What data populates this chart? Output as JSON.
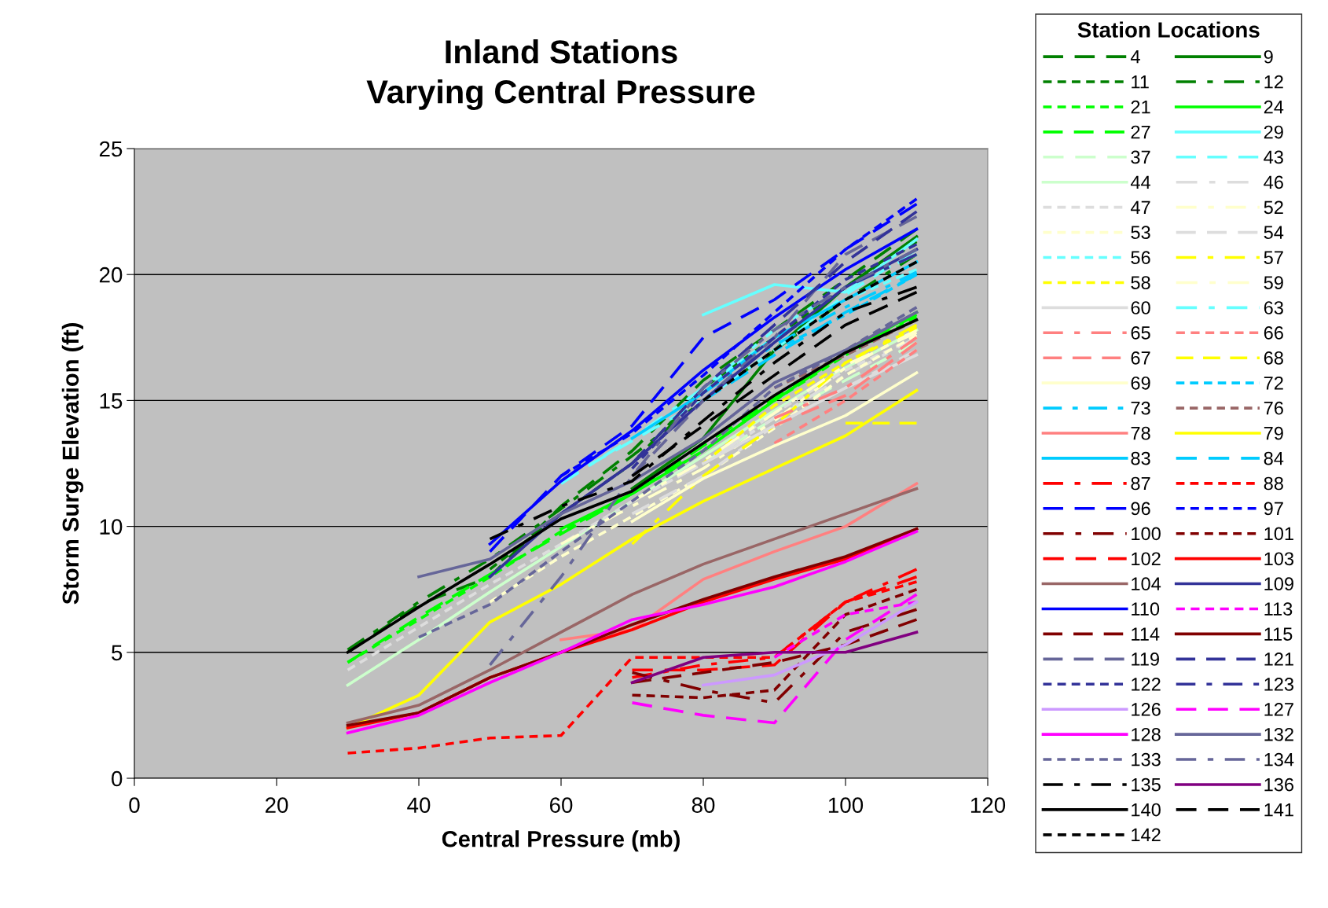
{
  "chart_data": {
    "type": "line",
    "title": "Inland Stations\nVarying Central Pressure",
    "xlabel": "Central Pressure (mb)",
    "ylabel": "Storm Surge Elevation (ft)",
    "legend_title": "Station Locations",
    "xlim": [
      0,
      120
    ],
    "xticks": [
      0,
      20,
      40,
      60,
      80,
      100,
      120
    ],
    "ylim": [
      0,
      25
    ],
    "yticks": [
      0,
      5,
      10,
      15,
      20,
      25
    ],
    "grid": "y",
    "legend": "right",
    "series": [
      {
        "name": "4",
        "color": "#008000",
        "line_style": "dashed",
        "x": [
          30,
          40,
          50,
          60,
          70,
          80,
          90,
          100,
          110
        ],
        "values": [
          5.0,
          6.9,
          8.0,
          10.8,
          13.0,
          15.8,
          17.8,
          19.8,
          21.8
        ]
      },
      {
        "name": "9",
        "color": "#008000",
        "line_style": "solid",
        "x": [
          70,
          80,
          90,
          100,
          110
        ],
        "values": [
          11.5,
          13.5,
          17.0,
          19.5,
          21.5
        ]
      },
      {
        "name": "11",
        "color": "#008000",
        "line_style": "dotted",
        "x": [
          50,
          60,
          70,
          80,
          90,
          100,
          110
        ],
        "values": [
          8.3,
          10.5,
          12.5,
          15.5,
          17.5,
          19.5,
          21.3
        ]
      },
      {
        "name": "12",
        "color": "#008000",
        "line_style": "dashdot",
        "x": [
          30,
          40,
          50,
          60,
          70,
          80,
          90,
          100,
          110
        ],
        "values": [
          5.1,
          7.0,
          8.7,
          10.7,
          12.8,
          15.0,
          17.0,
          19.0,
          20.8
        ]
      },
      {
        "name": "21",
        "color": "#00ff00",
        "line_style": "dotted",
        "x": [
          30,
          40,
          50,
          60,
          70,
          80,
          90,
          100,
          110
        ],
        "values": [
          4.6,
          6.3,
          8.0,
          9.8,
          11.3,
          13.0,
          15.0,
          16.8,
          18.3
        ]
      },
      {
        "name": "24",
        "color": "#00ff00",
        "line_style": "solid",
        "x": [
          60,
          70,
          80,
          90,
          100,
          110
        ],
        "values": [
          9.9,
          11.3,
          13.0,
          15.0,
          16.9,
          18.5
        ]
      },
      {
        "name": "27",
        "color": "#00ff00",
        "line_style": "dashed",
        "x": [
          30,
          40,
          50,
          60,
          70,
          80,
          90,
          100,
          110
        ],
        "values": [
          4.6,
          6.4,
          8.1,
          9.7,
          11.3,
          13.2,
          15.1,
          16.9,
          18.4
        ]
      },
      {
        "name": "29",
        "color": "#66ffff",
        "line_style": "solid",
        "x": [
          80,
          90,
          100,
          110
        ],
        "values": [
          18.4,
          19.6,
          19.3,
          21.4
        ]
      },
      {
        "name": "37",
        "color": "#ccffcc",
        "line_style": "dashed",
        "x": [
          80,
          90,
          100,
          110
        ],
        "values": [
          12.5,
          14.3,
          15.8,
          17.3
        ]
      },
      {
        "name": "43",
        "color": "#66ffff",
        "line_style": "dashed",
        "x": [
          60,
          70,
          80,
          90,
          100,
          110
        ],
        "values": [
          11.8,
          13.4,
          15.0,
          17.0,
          19.2,
          21.0
        ]
      },
      {
        "name": "44",
        "color": "#ccffcc",
        "line_style": "solid",
        "x": [
          30,
          40,
          50,
          60,
          70,
          80,
          90,
          100,
          110
        ],
        "values": [
          3.7,
          5.5,
          7.4,
          9.2,
          11.0,
          12.8,
          14.6,
          16.3,
          17.8
        ]
      },
      {
        "name": "46",
        "color": "#dddddd",
        "line_style": "dashdot",
        "x": [
          70,
          80,
          90,
          100,
          110
        ],
        "values": [
          11.0,
          12.5,
          14.3,
          16.0,
          17.5
        ]
      },
      {
        "name": "47",
        "color": "#dddddd",
        "line_style": "dotted",
        "x": [
          30,
          40,
          50,
          60,
          70,
          80,
          90,
          100,
          110
        ],
        "values": [
          4.3,
          6.0,
          7.7,
          9.3,
          11.0,
          12.5,
          14.5,
          16.2,
          17.5
        ]
      },
      {
        "name": "52",
        "color": "#ffffcc",
        "line_style": "dashdot",
        "x": [
          60,
          70,
          80,
          90,
          100,
          110
        ],
        "values": [
          9.3,
          10.8,
          12.3,
          14.2,
          16.3,
          17.8
        ]
      },
      {
        "name": "53",
        "color": "#ffffcc",
        "line_style": "dotted",
        "x": [
          50,
          60,
          70,
          80,
          90,
          100,
          110
        ],
        "values": [
          7.0,
          8.8,
          10.4,
          12.0,
          13.9,
          16.0,
          17.6
        ]
      },
      {
        "name": "54",
        "color": "#dddddd",
        "line_style": "dashed",
        "x": [
          70,
          80,
          90,
          100,
          110
        ],
        "values": [
          10.5,
          12.0,
          14.0,
          15.5,
          17.0
        ]
      },
      {
        "name": "56",
        "color": "#66ffff",
        "line_style": "dotted",
        "x": [
          80,
          90,
          100,
          110
        ],
        "values": [
          15.5,
          17.5,
          19.0,
          20.2
        ]
      },
      {
        "name": "57",
        "color": "#ffff00",
        "line_style": "dashdot",
        "x": [
          70,
          80,
          90,
          100,
          110
        ],
        "values": [
          9.3,
          12.0,
          14.0,
          16.5,
          18.0
        ]
      },
      {
        "name": "58",
        "color": "#ffff00",
        "line_style": "dotted",
        "x": [
          80,
          90,
          100,
          110
        ],
        "values": [
          12.5,
          14.8,
          16.5,
          17.9
        ]
      },
      {
        "name": "59",
        "color": "#ffffcc",
        "line_style": "dashdot",
        "x": [
          70,
          80,
          90,
          100,
          110
        ],
        "values": [
          11.0,
          12.6,
          14.5,
          16.4,
          17.7
        ]
      },
      {
        "name": "60",
        "color": "#dddddd",
        "line_style": "solid",
        "x": [
          80,
          90,
          100,
          110
        ],
        "values": [
          12.5,
          14.0,
          15.5,
          16.8
        ]
      },
      {
        "name": "63",
        "color": "#66ffff",
        "line_style": "dashdot",
        "x": [
          60,
          70,
          80,
          90,
          100,
          110
        ],
        "values": [
          11.7,
          13.5,
          15.5,
          17.8,
          19.5,
          20.8
        ]
      },
      {
        "name": "65",
        "color": "#ff8080",
        "line_style": "dashdot",
        "x": [
          90,
          100,
          110
        ],
        "values": [
          14.3,
          15.5,
          17.5
        ]
      },
      {
        "name": "66",
        "color": "#ff8080",
        "line_style": "dotted",
        "x": [
          90,
          100,
          110
        ],
        "values": [
          13.3,
          15.0,
          17.0
        ]
      },
      {
        "name": "67",
        "color": "#ff8080",
        "line_style": "dashed",
        "x": [
          90,
          100,
          110
        ],
        "values": [
          14.0,
          15.2,
          17.3
        ]
      },
      {
        "name": "68",
        "color": "#ffff00",
        "line_style": "dashed",
        "x": [
          100,
          110
        ],
        "values": [
          14.1,
          14.1
        ]
      },
      {
        "name": "69",
        "color": "#ffffcc",
        "line_style": "solid",
        "x": [
          70,
          80,
          90,
          100,
          110
        ],
        "values": [
          10.2,
          11.9,
          13.2,
          14.4,
          16.1
        ]
      },
      {
        "name": "72",
        "color": "#00ccff",
        "line_style": "dotted",
        "x": [
          90,
          100,
          110
        ],
        "values": [
          17.0,
          18.4,
          20.0
        ]
      },
      {
        "name": "73",
        "color": "#00ccff",
        "line_style": "dashdot",
        "x": [
          80,
          90,
          100,
          110
        ],
        "values": [
          15.3,
          17.2,
          18.7,
          20.1
        ]
      },
      {
        "name": "76",
        "color": "#996666",
        "line_style": "dotted",
        "x": [
          90,
          100,
          110
        ],
        "values": [
          15.5,
          16.8,
          18.2
        ]
      },
      {
        "name": "78",
        "color": "#ff8080",
        "line_style": "solid",
        "x": [
          60,
          70,
          80,
          90,
          100,
          110
        ],
        "values": [
          5.5,
          5.9,
          7.9,
          9.0,
          10.0,
          11.7
        ]
      },
      {
        "name": "79",
        "color": "#ffff00",
        "line_style": "solid",
        "x": [
          30,
          40,
          50,
          60,
          70,
          80,
          90,
          100,
          110
        ],
        "values": [
          2.0,
          3.3,
          6.2,
          7.7,
          9.5,
          11.0,
          12.3,
          13.6,
          15.4
        ]
      },
      {
        "name": "83",
        "color": "#00ccff",
        "line_style": "solid",
        "x": [
          70,
          80,
          90,
          100,
          110
        ],
        "values": [
          13.5,
          15.3,
          17.5,
          19.0,
          20.5
        ]
      },
      {
        "name": "84",
        "color": "#00ccff",
        "line_style": "dashed",
        "x": [
          80,
          90,
          100,
          110
        ],
        "values": [
          15.0,
          16.8,
          18.5,
          20.0
        ]
      },
      {
        "name": "87",
        "color": "#ff0000",
        "line_style": "dashdot",
        "x": [
          70,
          80,
          90,
          100,
          110
        ],
        "values": [
          4.0,
          4.5,
          4.8,
          7.0,
          8.3
        ]
      },
      {
        "name": "88",
        "color": "#ff0000",
        "line_style": "dotted",
        "x": [
          30,
          40,
          50,
          60,
          70,
          80,
          90,
          100,
          110
        ],
        "values": [
          1.0,
          1.2,
          1.6,
          1.7,
          4.8,
          4.8,
          4.8,
          7.0,
          7.8
        ]
      },
      {
        "name": "96",
        "color": "#0000ff",
        "line_style": "dashed",
        "x": [
          50,
          60,
          70,
          80,
          90,
          100,
          110
        ],
        "values": [
          9.0,
          12.0,
          14.0,
          17.5,
          19.0,
          21.0,
          22.8
        ]
      },
      {
        "name": "97",
        "color": "#0000ff",
        "line_style": "dotted",
        "x": [
          60,
          70,
          80,
          90,
          100,
          110
        ],
        "values": [
          12.0,
          13.7,
          16.0,
          18.5,
          21.0,
          23.0
        ]
      },
      {
        "name": "100",
        "color": "#800000",
        "line_style": "dashdot",
        "x": [
          70,
          80,
          90,
          100,
          110
        ],
        "values": [
          4.2,
          3.5,
          3.0,
          5.8,
          6.7
        ]
      },
      {
        "name": "101",
        "color": "#800000",
        "line_style": "dotted",
        "x": [
          70,
          80,
          90,
          100,
          110
        ],
        "values": [
          3.3,
          3.2,
          3.5,
          6.5,
          7.5
        ]
      },
      {
        "name": "102",
        "color": "#ff0000",
        "line_style": "dashed",
        "x": [
          70,
          80,
          90,
          100,
          110
        ],
        "values": [
          4.3,
          4.3,
          4.5,
          7.0,
          8.0
        ]
      },
      {
        "name": "103",
        "color": "#ff0000",
        "line_style": "solid",
        "x": [
          30,
          40,
          50,
          60,
          70,
          80,
          90,
          100,
          110
        ],
        "values": [
          2.0,
          2.6,
          4.0,
          5.0,
          5.9,
          7.0,
          7.9,
          8.7,
          9.9
        ]
      },
      {
        "name": "104",
        "color": "#996666",
        "line_style": "solid",
        "x": [
          30,
          40,
          50,
          60,
          70,
          80,
          90,
          100,
          110
        ],
        "values": [
          2.2,
          2.9,
          4.3,
          5.8,
          7.3,
          8.5,
          9.5,
          10.5,
          11.5
        ]
      },
      {
        "name": "109",
        "color": "#333399",
        "line_style": "solid",
        "x": [
          50,
          60,
          70,
          80,
          90,
          100,
          110
        ],
        "values": [
          8.0,
          10.5,
          12.5,
          15.0,
          17.3,
          19.5,
          21.0
        ]
      },
      {
        "name": "110",
        "color": "#0000ff",
        "line_style": "solid",
        "x": [
          50,
          60,
          70,
          80,
          90,
          100,
          110
        ],
        "values": [
          9.3,
          11.8,
          13.8,
          16.2,
          18.3,
          20.2,
          21.8
        ]
      },
      {
        "name": "113",
        "color": "#ff00ff",
        "line_style": "dotted",
        "x": [
          90,
          100,
          110
        ],
        "values": [
          4.8,
          6.5,
          7.0
        ]
      },
      {
        "name": "114",
        "color": "#800000",
        "line_style": "dashed",
        "x": [
          70,
          80,
          90,
          100,
          110
        ],
        "values": [
          3.8,
          4.2,
          4.6,
          5.3,
          6.3
        ]
      },
      {
        "name": "115",
        "color": "#800000",
        "line_style": "solid",
        "x": [
          30,
          40,
          50,
          60,
          70,
          80,
          90,
          100,
          110
        ],
        "values": [
          2.1,
          2.6,
          4.0,
          5.0,
          6.1,
          7.1,
          8.0,
          8.8,
          9.9
        ]
      },
      {
        "name": "119",
        "color": "#666699",
        "line_style": "dashed",
        "x": [
          70,
          80,
          90,
          100,
          110
        ],
        "values": [
          12.0,
          15.0,
          17.5,
          20.8,
          22.3
        ]
      },
      {
        "name": "121",
        "color": "#333399",
        "line_style": "dashed",
        "x": [
          70,
          80,
          90,
          100,
          110
        ],
        "values": [
          12.5,
          15.5,
          18.0,
          20.5,
          22.5
        ]
      },
      {
        "name": "122",
        "color": "#333399",
        "line_style": "dotted",
        "x": [
          70,
          80,
          90,
          100,
          110
        ],
        "values": [
          12.3,
          15.3,
          17.5,
          19.8,
          21.2
        ]
      },
      {
        "name": "123",
        "color": "#333399",
        "line_style": "dashdot",
        "x": [
          60,
          70,
          80,
          90,
          100,
          110
        ],
        "values": [
          10.5,
          12.5,
          15.0,
          17.3,
          19.5,
          20.8
        ]
      },
      {
        "name": "126",
        "color": "#cc99ff",
        "line_style": "solid",
        "x": [
          80,
          90,
          100,
          110
        ],
        "values": [
          3.7,
          4.1,
          5.3,
          7.0
        ]
      },
      {
        "name": "127",
        "color": "#ff00ff",
        "line_style": "dashed",
        "x": [
          70,
          80,
          90,
          100,
          110
        ],
        "values": [
          3.0,
          2.5,
          2.2,
          5.5,
          7.3
        ]
      },
      {
        "name": "128",
        "color": "#ff00ff",
        "line_style": "solid",
        "x": [
          30,
          40,
          50,
          60,
          70,
          80,
          90,
          100,
          110
        ],
        "values": [
          1.8,
          2.5,
          3.8,
          5.0,
          6.3,
          6.9,
          7.6,
          8.6,
          9.8
        ]
      },
      {
        "name": "132",
        "color": "#666699",
        "line_style": "solid",
        "x": [
          40,
          50,
          60,
          70,
          80,
          90,
          100,
          110
        ],
        "values": [
          8.0,
          8.7,
          10.5,
          11.8,
          13.5,
          15.7,
          17.0,
          18.5
        ]
      },
      {
        "name": "133",
        "color": "#666699",
        "line_style": "dotted",
        "x": [
          40,
          50,
          60,
          70,
          80,
          90,
          100,
          110
        ],
        "values": [
          5.6,
          6.9,
          9.0,
          11.0,
          13.0,
          15.5,
          17.0,
          18.7
        ]
      },
      {
        "name": "134",
        "color": "#666699",
        "line_style": "dashdot",
        "x": [
          50,
          60,
          70,
          80,
          90,
          100,
          110
        ],
        "values": [
          4.5,
          8.0,
          12.0,
          15.5,
          17.8,
          19.5,
          21.0
        ]
      },
      {
        "name": "135",
        "color": "#000000",
        "line_style": "dashdot",
        "x": [
          50,
          60,
          70,
          80,
          90,
          100,
          110
        ],
        "values": [
          9.5,
          10.8,
          11.8,
          14.2,
          16.5,
          18.5,
          19.5
        ]
      },
      {
        "name": "136",
        "color": "#800080",
        "line_style": "solid",
        "x": [
          70,
          80,
          90,
          100,
          110
        ],
        "values": [
          3.8,
          4.8,
          5.0,
          5.0,
          5.8
        ]
      },
      {
        "name": "140",
        "color": "#000000",
        "line_style": "solid",
        "x": [
          30,
          40,
          50,
          60,
          70,
          80,
          90,
          100,
          110
        ],
        "values": [
          5.0,
          6.8,
          8.5,
          10.3,
          11.4,
          13.3,
          15.2,
          16.9,
          18.2
        ]
      },
      {
        "name": "141",
        "color": "#000000",
        "line_style": "dashed",
        "x": [
          70,
          80,
          90,
          100,
          110
        ],
        "values": [
          12.0,
          14.0,
          16.0,
          18.0,
          19.3
        ]
      },
      {
        "name": "142",
        "color": "#000000",
        "line_style": "dotted",
        "x": [
          80,
          90,
          100,
          110
        ],
        "values": [
          15.0,
          17.0,
          19.0,
          20.5
        ]
      }
    ]
  }
}
